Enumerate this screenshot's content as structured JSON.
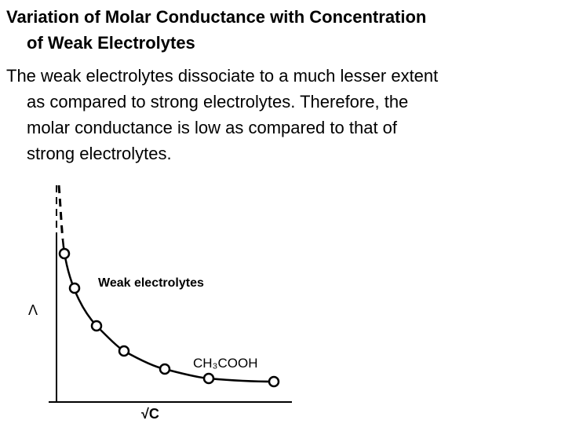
{
  "title": [
    "Variation of Molar Conductance with Concentration",
    "of Weak Electrolytes"
  ],
  "body": [
    "The weak electrolytes dissociate to a much lesser extent",
    "as compared to strong electrolytes. Therefore, the",
    "molar conductance is low as compared to that of",
    "strong electrolytes."
  ],
  "graph": {
    "curve_label": "Weak electrolytes",
    "compound_label": "CH₃COOH",
    "y_axis_label": "Λ",
    "x_axis_label": "√C"
  }
}
